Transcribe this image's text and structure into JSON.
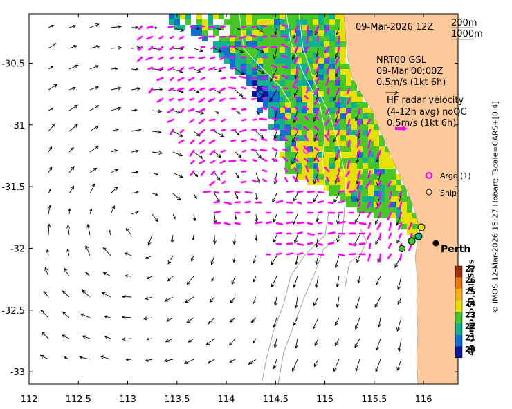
{
  "map": {
    "title_time": "09-Mar-2026 12Z",
    "isobath_labels": [
      "200m",
      "1000m"
    ],
    "sla_source": "NRT00 GSL",
    "sla_time": "09-Mar 00:00Z",
    "sla_scale": "0.5m/s (1kt 6h)",
    "radar_title": "HF radar velocity",
    "radar_subtitle": "(4-12h avg) noQC",
    "radar_scale": "0.5m/s (1kt 6h)",
    "legend_argo": "Argo (1)",
    "legend_ship": "Ship",
    "city": "Perth",
    "credit": "© IMOS 12-Mar-2026 15:27 Hobart; Tscale=CARS+[0 4]",
    "colorbar_label": "4h comp, p50, All Sats",
    "colors": {
      "land": "#fdc99a",
      "sla_arrows": "#000000",
      "radar_arrows": "#ff00ff"
    }
  },
  "axes": {
    "x_ticks": [
      "112",
      "112.5",
      "113",
      "113.5",
      "114",
      "114.5",
      "115",
      "115.5",
      "116"
    ],
    "x_values": [
      112,
      112.5,
      113,
      113.5,
      114,
      114.5,
      115,
      115.5,
      116
    ],
    "y_ticks": [
      "-30.5",
      "-31",
      "-31.5",
      "-32",
      "-32.5",
      "-33"
    ],
    "y_values": [
      -30.5,
      -31,
      -31.5,
      -32,
      -32.5,
      -33
    ],
    "xlim": [
      112,
      116.35
    ],
    "ylim": [
      -33.1,
      -30.1
    ]
  },
  "colorbar": {
    "ticks": [
      "27",
      "26",
      "25",
      "24",
      "23",
      "22",
      "21",
      "20"
    ],
    "values": [
      27,
      26,
      25,
      24,
      23,
      22,
      21,
      20
    ],
    "colors": [
      "#a0300a",
      "#e87808",
      "#f8b010",
      "#e8e000",
      "#48c828",
      "#10b090",
      "#1070d0",
      "#0818a0"
    ]
  }
}
